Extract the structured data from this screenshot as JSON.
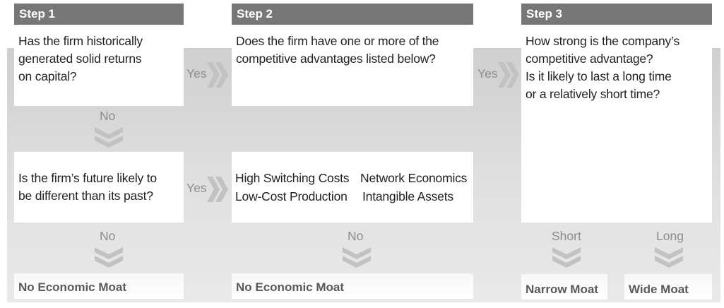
{
  "steps": [
    {
      "label": "Step 1"
    },
    {
      "label": "Step 2"
    },
    {
      "label": "Step 3"
    }
  ],
  "q1": [
    "Has the firm historically",
    "generated solid returns",
    "on capital?"
  ],
  "q2": [
    "Does the firm have one or more of the",
    "competitive advantages listed below?"
  ],
  "q3": [
    "How strong is the company’s",
    "competitive advantage?",
    "Is it likely to last a long time",
    "or a relatively short time?"
  ],
  "q4": [
    "Is the firm’s future likely to",
    "be different than its past?"
  ],
  "advantages": [
    "High Switching Costs",
    "Network Economics",
    "Low-Cost Production",
    "Intangible Assets"
  ],
  "connectors": {
    "yes": "Yes",
    "no": "No",
    "short": "Short",
    "long": "Long"
  },
  "outcomes": {
    "no_moat": "No Economic Moat",
    "narrow": "Narrow Moat",
    "wide": "Wide Moat"
  },
  "colors": {
    "header": "#777777",
    "connector": "#8c8c8c",
    "chevron": "#c2c2c2",
    "outcome_text": "#5a5a5a"
  }
}
